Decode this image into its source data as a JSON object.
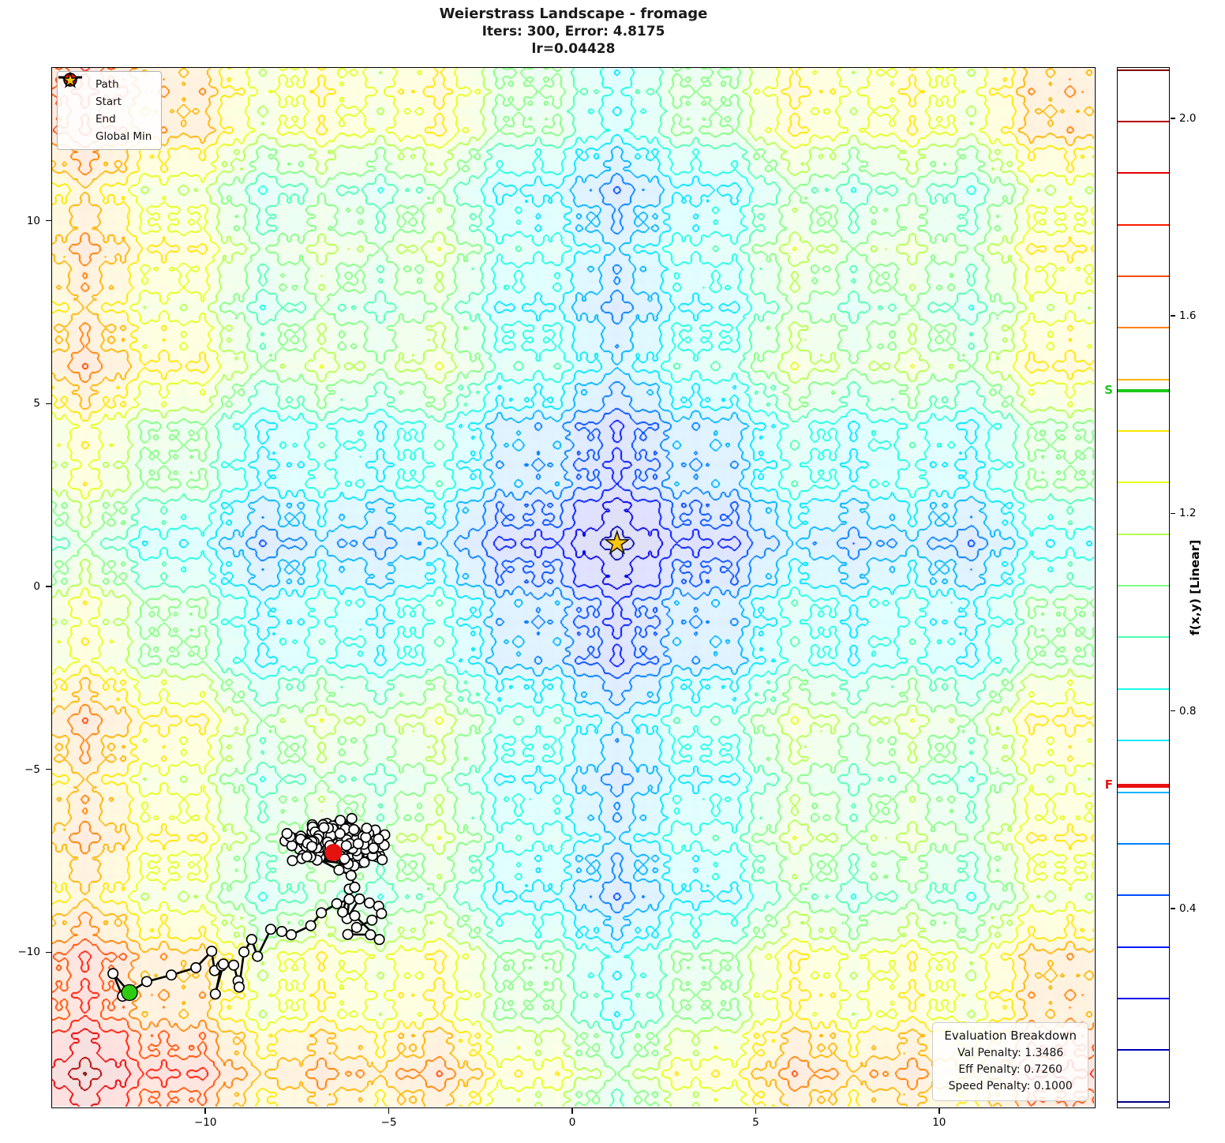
{
  "title": {
    "line1": "Weierstrass Landscape - fromage",
    "line2": "Iters: 300, Error: 4.8175",
    "line3": "lr=0.04428"
  },
  "legend": {
    "items": [
      {
        "label": "Path"
      },
      {
        "label": "Start"
      },
      {
        "label": "End"
      },
      {
        "label": "Global Min"
      }
    ]
  },
  "eval_box": {
    "title": "Evaluation Breakdown",
    "val_penalty": "Val Penalty: 1.3486",
    "eff_penalty": "Eff Penalty: 0.7260",
    "speed_penalty": "Speed Penalty: 0.1000"
  },
  "colorbar": {
    "label": "f(x,y) [Linear]",
    "range": [
      0.0,
      2.104
    ],
    "ticks": [
      0.4,
      0.8,
      1.2,
      1.6,
      2.0
    ],
    "start_marker": {
      "label": "S",
      "value": 1.45,
      "color": "#1ec81e"
    },
    "final_marker": {
      "label": "F",
      "value": 0.65,
      "color": "#e81212"
    }
  },
  "chart_data": {
    "type": "contour",
    "title": "Weierstrass Landscape - fromage",
    "subtitle": "Iters: 300, Error: 4.8175, lr=0.04428",
    "xlim": [
      -14.2,
      14.2
    ],
    "ylim": [
      -14.2,
      14.2
    ],
    "x_tick_labels": [
      "−10",
      "−5",
      "0",
      "5",
      "10"
    ],
    "x_tick_values": [
      -10,
      -5,
      0,
      5,
      10
    ],
    "y_tick_labels": [
      "10",
      "5",
      "0",
      "−5",
      "−10"
    ],
    "y_tick_values": [
      10,
      5,
      0,
      -5,
      -10
    ],
    "grid": false,
    "legend_position": "upper left",
    "surface": {
      "function": "weierstrass2d_separable",
      "octaves": 5,
      "amplitude_ratio": 0.5,
      "frequency_ratio": 3,
      "period": 29,
      "center": [
        1.2,
        1.2
      ],
      "f_max": 2.104
    },
    "contour": {
      "n_levels": 21,
      "level_min": 0.01,
      "level_step": 0.1045,
      "colormap": "jet",
      "background_tint_alpha": 0.12
    },
    "colors": {
      "path": "#000000",
      "path_marker_fill": "#ffffff",
      "start": "#2ecc11",
      "end": "#e41310",
      "global_min": "#ffc60f"
    },
    "global_min": [
      1.2,
      1.2
    ],
    "start": [
      -12.09,
      -11.08
    ],
    "end": [
      -6.53,
      -7.25
    ],
    "path": {
      "points": [
        [
          -12.09,
          -11.08
        ],
        [
          -12.54,
          -10.56
        ],
        [
          -12.28,
          -11.18
        ],
        [
          -11.62,
          -10.78
        ],
        [
          -10.95,
          -10.6
        ],
        [
          -10.28,
          -10.4
        ],
        [
          -9.85,
          -9.95
        ],
        [
          -9.77,
          -10.48
        ],
        [
          -9.58,
          -10.35
        ],
        [
          -9.75,
          -11.12
        ],
        [
          -9.53,
          -10.3
        ],
        [
          -9.25,
          -10.33
        ],
        [
          -9.13,
          -10.76
        ],
        [
          -9.1,
          -10.93
        ],
        [
          -8.97,
          -9.97
        ],
        [
          -8.76,
          -9.63
        ],
        [
          -8.6,
          -10.09
        ],
        [
          -8.24,
          -9.35
        ],
        [
          -7.94,
          -9.41
        ],
        [
          -7.68,
          -9.5
        ],
        [
          -7.15,
          -9.25
        ],
        [
          -6.86,
          -8.9
        ],
        [
          -6.44,
          -8.65
        ],
        [
          -6.1,
          -8.53
        ],
        [
          -6.16,
          -9.06
        ],
        [
          -5.82,
          -8.52
        ],
        [
          -5.55,
          -8.63
        ],
        [
          -5.3,
          -8.72
        ],
        [
          -5.22,
          -8.92
        ],
        [
          -5.48,
          -9.1
        ],
        [
          -5.9,
          -9.3
        ],
        [
          -6.14,
          -9.49
        ],
        [
          -5.52,
          -9.5
        ],
        [
          -5.28,
          -9.63
        ],
        [
          -5.95,
          -8.98
        ],
        [
          -6.28,
          -8.88
        ],
        [
          -6.1,
          -8.25
        ],
        [
          -5.95,
          -8.2
        ],
        [
          -6.05,
          -7.88
        ],
        [
          -6.38,
          -7.73
        ]
      ],
      "cluster": {
        "center": [
          -6.45,
          -7.02
        ],
        "rx": 1.32,
        "ry": 0.62,
        "count": 165,
        "seed": 42
      }
    }
  }
}
